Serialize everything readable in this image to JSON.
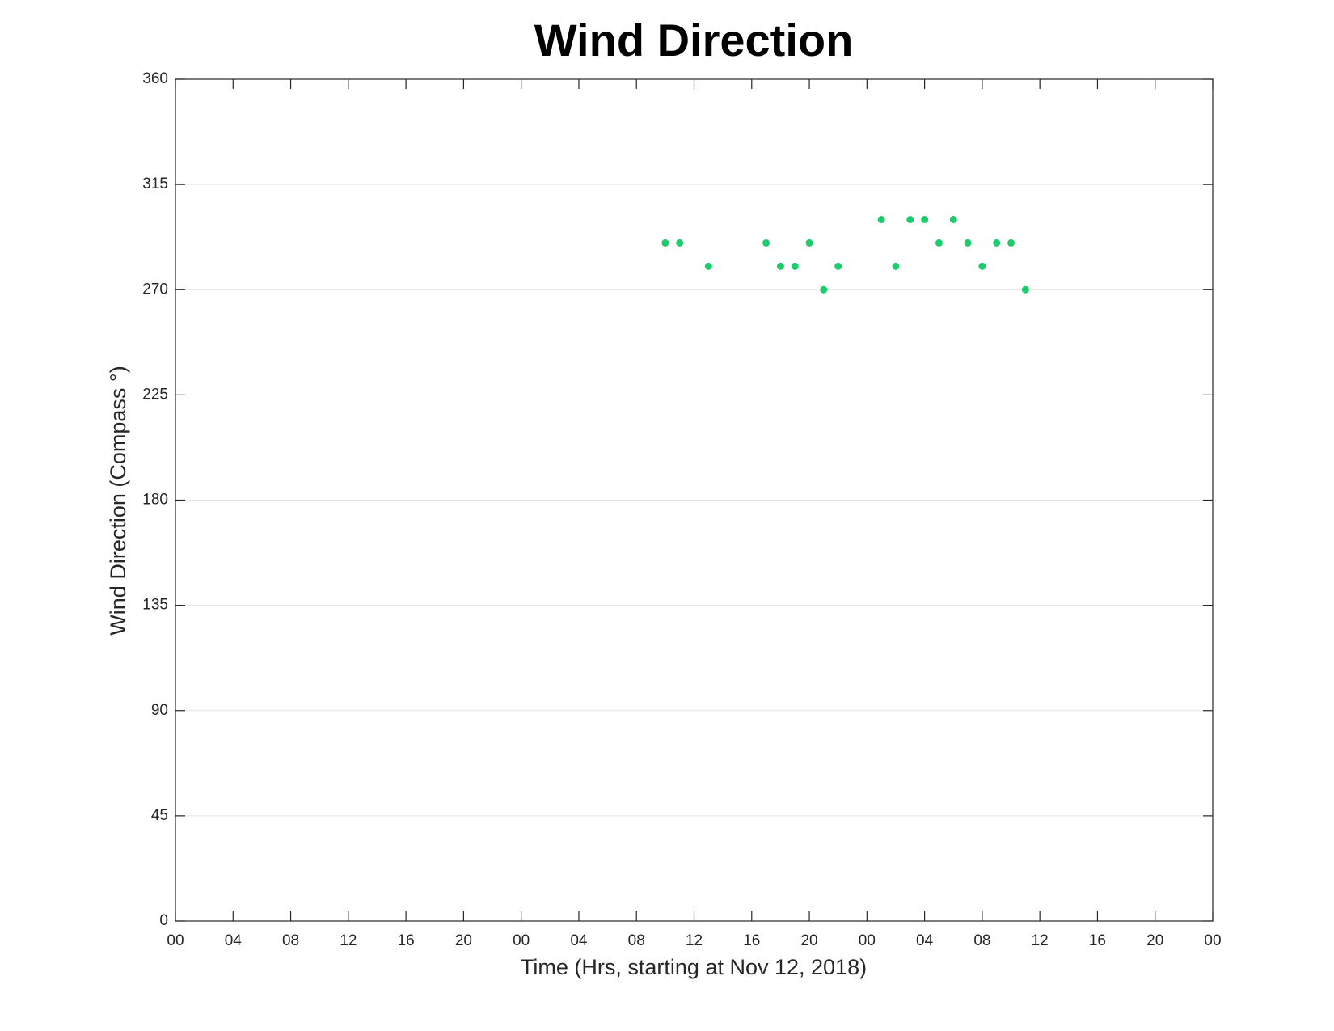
{
  "chart_data": {
    "type": "scatter",
    "title": "Wind Direction",
    "xlabel": "Time (Hrs, starting at Nov 12, 2018)",
    "ylabel": "Wind Direction (Compass °)",
    "xlim": [
      0,
      72
    ],
    "xticks": [
      {
        "value": 0,
        "label": "00"
      },
      {
        "value": 4,
        "label": "04"
      },
      {
        "value": 8,
        "label": "08"
      },
      12,
      16,
      20,
      {
        "value": 24,
        "label": "00"
      },
      {
        "value": 28,
        "label": "04"
      },
      {
        "value": 32,
        "label": "08"
      },
      {
        "value": 36,
        "label": "12"
      },
      {
        "value": 40,
        "label": "16"
      },
      {
        "value": 44,
        "label": "20"
      },
      {
        "value": 48,
        "label": "00"
      },
      {
        "value": 52,
        "label": "04"
      },
      {
        "value": 56,
        "label": "08"
      },
      {
        "value": 60,
        "label": "12"
      },
      {
        "value": 64,
        "label": "16"
      },
      {
        "value": 68,
        "label": "20"
      },
      {
        "value": 72,
        "label": "00"
      }
    ],
    "ylim": [
      0,
      360
    ],
    "yticks": [
      0,
      45,
      90,
      135,
      180,
      225,
      270,
      315,
      360
    ],
    "grid": true,
    "series": [
      {
        "color": "#1dcc6c",
        "x": [
          34,
          35,
          37,
          41,
          42,
          43,
          44,
          45,
          46,
          49,
          50,
          51,
          52,
          53,
          54,
          55,
          56,
          57,
          58,
          59
        ],
        "values": [
          290,
          290,
          280,
          290,
          280,
          280,
          290,
          270,
          280,
          300,
          280,
          300,
          300,
          290,
          300,
          290,
          280,
          290,
          290,
          270
        ]
      }
    ]
  }
}
